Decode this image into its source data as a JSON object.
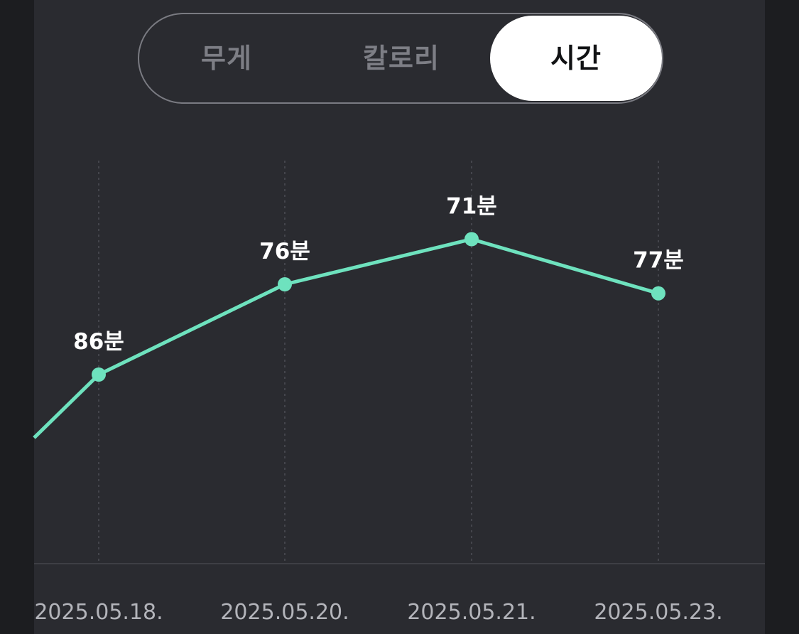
{
  "tabs": [
    "무게",
    "칼로리",
    "시간"
  ],
  "active_tab": 2,
  "colors": {
    "background": "#2a2b30",
    "line": "#6ee2be",
    "active_tab_bg": "#ffffff"
  },
  "chart_data": {
    "type": "line",
    "x": [
      "2025.05.18.",
      "2025.05.20.",
      "2025.05.21.",
      "2025.05.23."
    ],
    "values": [
      86,
      76,
      71,
      77
    ],
    "data_labels": [
      "86분",
      "76분",
      "71분",
      "77분"
    ],
    "unit": "분",
    "previous_point_value": 93,
    "grid": "vertical dotted",
    "title": "",
    "xlabel": "",
    "ylabel": ""
  }
}
